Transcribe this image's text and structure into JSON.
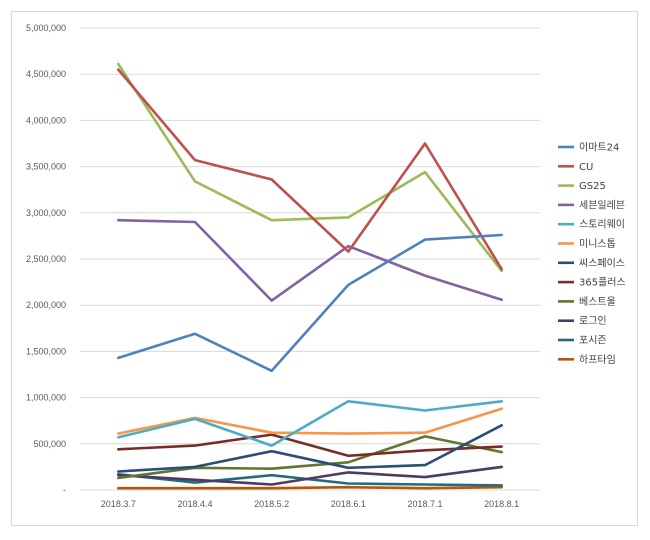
{
  "chart_data": {
    "type": "line",
    "title": "",
    "xlabel": "",
    "ylabel": "",
    "categories": [
      "2018.3.7",
      "2018.4.4",
      "2018.5.2",
      "2018.6.1",
      "2018.7.1",
      "2018.8.1"
    ],
    "ylim": [
      0,
      5000000
    ],
    "y_ticks": [
      0,
      500000,
      1000000,
      1500000,
      2000000,
      2500000,
      3000000,
      3500000,
      4000000,
      4500000,
      5000000
    ],
    "y_tick_labels": [
      "-",
      "500,000",
      "1,000,000",
      "1,500,000",
      "2,000,000",
      "2,500,000",
      "3,000,000",
      "3,500,000",
      "4,000,000",
      "4,500,000",
      "5,000,000"
    ],
    "grid": "horizontal",
    "legend_position": "right",
    "series": [
      {
        "name": "이마트24",
        "color": "#4f81bd",
        "values": [
          1430000,
          1690000,
          1290000,
          2220000,
          2710000,
          2760000
        ]
      },
      {
        "name": "CU",
        "color": "#c0504d",
        "values": [
          4550000,
          3570000,
          3360000,
          2580000,
          3750000,
          2390000
        ]
      },
      {
        "name": "GS25",
        "color": "#9bbb59",
        "values": [
          4610000,
          3340000,
          2920000,
          2950000,
          3440000,
          2370000
        ]
      },
      {
        "name": "세븐일레븐",
        "color": "#8064a2",
        "values": [
          2920000,
          2900000,
          2050000,
          2640000,
          2320000,
          2060000
        ]
      },
      {
        "name": "스토리웨이",
        "color": "#4bacc6",
        "values": [
          570000,
          770000,
          480000,
          960000,
          860000,
          960000
        ]
      },
      {
        "name": "미니스톱",
        "color": "#f79646",
        "values": [
          610000,
          780000,
          620000,
          610000,
          620000,
          880000
        ]
      },
      {
        "name": "씨스페이스",
        "color": "#2c4d75",
        "values": [
          200000,
          250000,
          420000,
          240000,
          270000,
          700000
        ]
      },
      {
        "name": "365플러스",
        "color": "#772c2a",
        "values": [
          440000,
          480000,
          600000,
          370000,
          430000,
          470000
        ]
      },
      {
        "name": "베스트울",
        "color": "#5f7530",
        "values": [
          130000,
          240000,
          230000,
          300000,
          580000,
          410000
        ]
      },
      {
        "name": "로그인",
        "color": "#4d3b62",
        "values": [
          160000,
          110000,
          60000,
          190000,
          140000,
          250000
        ]
      },
      {
        "name": "포시즌",
        "color": "#276a7c",
        "values": [
          170000,
          80000,
          160000,
          70000,
          60000,
          50000
        ]
      },
      {
        "name": "하프타임",
        "color": "#b65708",
        "values": [
          20000,
          20000,
          20000,
          30000,
          20000,
          30000
        ]
      }
    ]
  }
}
